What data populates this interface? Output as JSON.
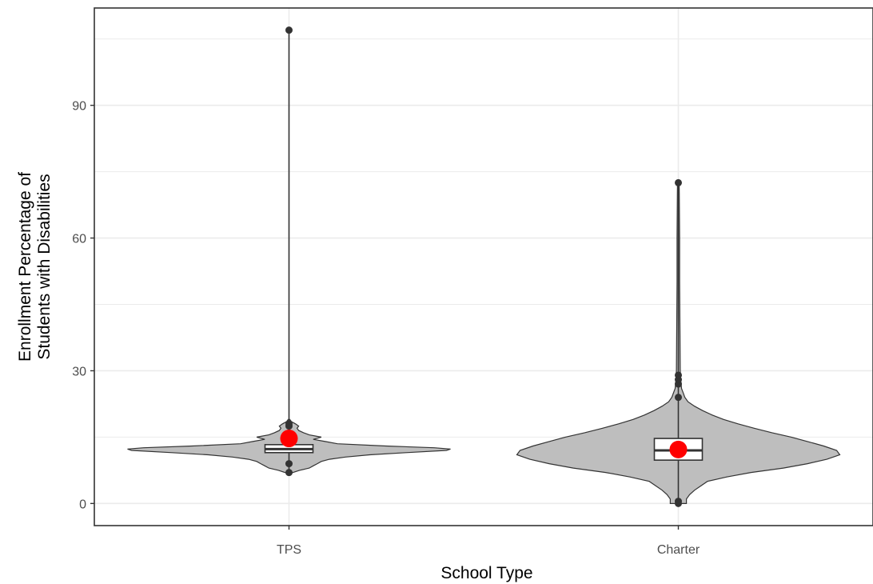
{
  "chart_data": {
    "type": "violin",
    "xlabel": "School Type",
    "ylabel": "Enrollment Percentage of Students with Disabilities",
    "ylabel_lines": [
      "Enrollment Percentage of",
      "Students with Disabilities"
    ],
    "categories": [
      "TPS",
      "Charter"
    ],
    "ylim": [
      -5,
      112
    ],
    "yticks": [
      0,
      30,
      60,
      90
    ],
    "grid": true,
    "theme": "bw",
    "colors": {
      "violin_fill": "#bebebe",
      "outline": "#333333",
      "box_fill": "#ffffff",
      "mean_point": "#ff0000",
      "grid": "#ebebeb",
      "panel_border": "#333333"
    },
    "groups": [
      {
        "name": "TPS",
        "mean": 14.7,
        "box": {
          "q1": 11.5,
          "median": 12.3,
          "q3": 13.3
        },
        "whiskers": [
          7,
          107
        ],
        "outliers": [
          7.0,
          9.0,
          17.5,
          18.0,
          107.0
        ],
        "density": [
          [
            7,
            0.05
          ],
          [
            7.5,
            0.13
          ],
          [
            8,
            0.25
          ],
          [
            8.5,
            0.3
          ],
          [
            9,
            0.35
          ],
          [
            9.5,
            0.4
          ],
          [
            10,
            0.5
          ],
          [
            10.5,
            0.7
          ],
          [
            11,
            1.0
          ],
          [
            11.5,
            1.45
          ],
          [
            12,
            1.95
          ],
          [
            12.3,
            2.0
          ],
          [
            12.6,
            1.8
          ],
          [
            13,
            1.2
          ],
          [
            13.5,
            0.6
          ],
          [
            14,
            0.45
          ],
          [
            14.5,
            0.3
          ],
          [
            15,
            0.4
          ],
          [
            15.5,
            0.25
          ],
          [
            16,
            0.18
          ],
          [
            16.5,
            0.12
          ],
          [
            17,
            0.1
          ],
          [
            17.5,
            0.12
          ],
          [
            18,
            0.08
          ],
          [
            18.5,
            0.03
          ],
          [
            19,
            0.01
          ]
        ]
      },
      {
        "name": "Charter",
        "mean": 12.2,
        "box": {
          "q1": 9.8,
          "median": 12.0,
          "q3": 14.7
        },
        "whiskers": [
          0,
          73
        ],
        "outliers": [
          0.0,
          0.5,
          24.0,
          27.0,
          28.0,
          29.0,
          72.5
        ],
        "density": [
          [
            0,
            0.05
          ],
          [
            1,
            0.05
          ],
          [
            2,
            0.07
          ],
          [
            3,
            0.1
          ],
          [
            4,
            0.14
          ],
          [
            5,
            0.18
          ],
          [
            6,
            0.3
          ],
          [
            7,
            0.45
          ],
          [
            8,
            0.65
          ],
          [
            9,
            0.8
          ],
          [
            10,
            0.92
          ],
          [
            11,
            1.0
          ],
          [
            12,
            0.98
          ],
          [
            13,
            0.9
          ],
          [
            14,
            0.8
          ],
          [
            15,
            0.7
          ],
          [
            16,
            0.58
          ],
          [
            17,
            0.47
          ],
          [
            18,
            0.37
          ],
          [
            19,
            0.28
          ],
          [
            20,
            0.21
          ],
          [
            21,
            0.15
          ],
          [
            22,
            0.1
          ],
          [
            23,
            0.06
          ],
          [
            24,
            0.04
          ],
          [
            25,
            0.03
          ],
          [
            26,
            0.02
          ],
          [
            28,
            0.015
          ],
          [
            30,
            0.012
          ],
          [
            40,
            0.01
          ],
          [
            50,
            0.008
          ],
          [
            60,
            0.008
          ],
          [
            70,
            0.006
          ],
          [
            73,
            0.005
          ]
        ]
      }
    ]
  }
}
